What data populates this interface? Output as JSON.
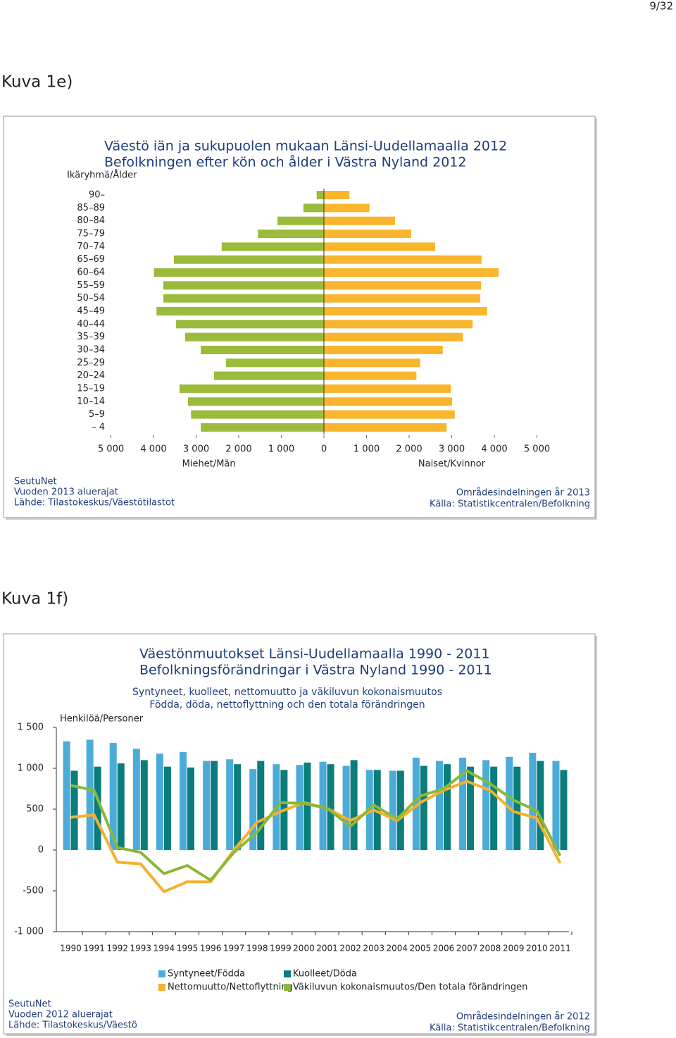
{
  "page_number": "9/32",
  "captions": [
    "Kuva 1e)",
    "Kuva 1f)"
  ],
  "chart_data": [
    {
      "type": "pyramid",
      "title": "Väestö iän ja sukupuolen mukaan Länsi-Uudellamaalla 2012",
      "subtitle": "Befolkningen efter kön och ålder i Västra Nyland 2012",
      "y_label": "Ikäryhmä/Ålder",
      "categories": [
        "90–",
        "85–89",
        "80–84",
        "75–79",
        "70–74",
        "65–69",
        "60–64",
        "55–59",
        "50–54",
        "45–49",
        "40–44",
        "35–39",
        "30–34",
        "25–29",
        "20–24",
        "15–19",
        "10–14",
        "5–9",
        "– 4"
      ],
      "series": [
        {
          "name": "Miehet/Män",
          "color": "#9bbb3b",
          "side": "left",
          "values": [
            170,
            480,
            1090,
            1550,
            2400,
            3520,
            3990,
            3770,
            3770,
            3930,
            3470,
            3260,
            2890,
            2300,
            2580,
            3390,
            3190,
            3120,
            2890
          ]
        },
        {
          "name": "Naiset/Kvinnor",
          "color": "#f9b62c",
          "side": "right",
          "values": [
            600,
            1070,
            1670,
            2050,
            2610,
            3700,
            4100,
            3690,
            3670,
            3830,
            3490,
            3260,
            2790,
            2260,
            2170,
            2980,
            3010,
            3070,
            2880
          ]
        }
      ],
      "xlim": [
        -5000,
        5000
      ],
      "xticks": [
        {
          "value": -5000,
          "label": "5 000"
        },
        {
          "value": -4000,
          "label": "4 000"
        },
        {
          "value": -3000,
          "label": "3 000"
        },
        {
          "value": -2000,
          "label": "2 000"
        },
        {
          "value": -1000,
          "label": "1 000"
        },
        0,
        {
          "value": 1000,
          "label": "1 000"
        },
        {
          "value": 2000,
          "label": "2 000"
        },
        {
          "value": 3000,
          "label": "3 000"
        },
        {
          "value": 4000,
          "label": "4 000"
        },
        {
          "value": 5000,
          "label": "5 000"
        }
      ],
      "footer_left": [
        "SeutuNet",
        "Vuoden 2013 aluerajat",
        "Lähde: Tilastokeskus/Väestötilastot"
      ],
      "footer_right": [
        "Områdesindelningen år 2013",
        "Källa: Statistikcentralen/Befolkning"
      ]
    },
    {
      "type": "bar_line",
      "title": "Väestönmuutokset Länsi-Uudellamaalla 1990 - 2011",
      "subtitle": "Befolkningsförändringar i Västra Nyland 1990 - 2011",
      "description": [
        "Syntyneet, kuolleet, nettomuutto ja väkiluvun kokonaismuutos",
        "Födda, döda, nettoflyttning och den totala förändringen"
      ],
      "y_label": "Henkilöä/Personer",
      "categories": [
        "1990",
        "1991",
        "1992",
        "1993",
        "1994",
        "1995",
        "1996",
        "1997",
        "1998",
        "1999",
        "2000",
        "2001",
        "2002",
        "2003",
        "2004",
        "2005",
        "2006",
        "2007",
        "2008",
        "2009",
        "2010",
        "2011"
      ],
      "series": [
        {
          "name": "Syntyneet/Födda",
          "kind": "bar",
          "color": "#4bacd9",
          "values": [
            1330,
            1350,
            1310,
            1240,
            1180,
            1200,
            1090,
            1110,
            990,
            1050,
            1040,
            1080,
            1030,
            980,
            970,
            1130,
            1090,
            1130,
            1100,
            1140,
            1190,
            1090
          ]
        },
        {
          "name": "Kuolleet/Döda",
          "kind": "bar",
          "color": "#0b7d7a",
          "values": [
            970,
            1020,
            1060,
            1100,
            1020,
            1010,
            1090,
            1050,
            1090,
            980,
            1070,
            1050,
            1100,
            980,
            970,
            1030,
            1050,
            1020,
            1020,
            1020,
            1090,
            980
          ]
        },
        {
          "name": "Nettomuutto/Nettoflyttning",
          "kind": "line",
          "color": "#f5b02e",
          "values": [
            400,
            430,
            -150,
            -170,
            -510,
            -390,
            -390,
            0,
            340,
            470,
            580,
            510,
            360,
            490,
            360,
            580,
            730,
            840,
            730,
            470,
            390,
            -160
          ]
        },
        {
          "name": "Väkiluvun kokonaismuutos/Den totala förändringen",
          "kind": "line",
          "color": "#8ab83a",
          "values": [
            790,
            730,
            30,
            -30,
            -290,
            -190,
            -370,
            -30,
            220,
            580,
            570,
            510,
            290,
            550,
            380,
            660,
            750,
            970,
            810,
            610,
            480,
            -70
          ]
        }
      ],
      "ylim": [
        -1000,
        1500
      ],
      "yticks": [
        {
          "value": 1500,
          "label": "1 500"
        },
        {
          "value": 1000,
          "label": "1 000"
        },
        500,
        0,
        -500,
        {
          "value": -1000,
          "label": "-1 000"
        }
      ],
      "footer_left": [
        "SeutuNet",
        "Vuoden 2012 aluerajat",
        "Lähde: Tilastokeskus/Väestö"
      ],
      "footer_right": [
        "Områdesindelningen år 2012",
        "Källa: Statistikcentralen/Befolkning"
      ]
    }
  ]
}
